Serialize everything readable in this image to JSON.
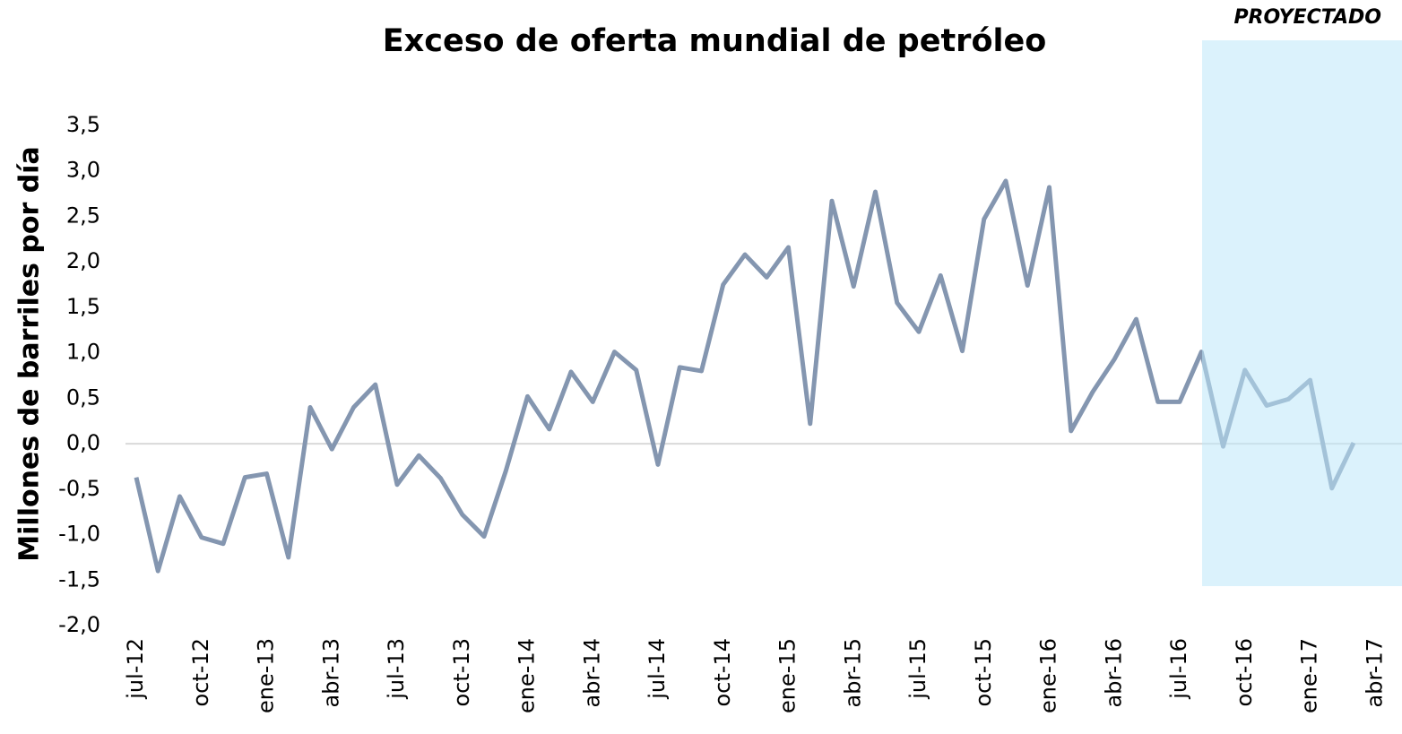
{
  "chart_data": {
    "type": "line",
    "title": "Exceso de oferta mundial de petróleo",
    "y_label": "Millones de barriles por día",
    "annotation": "PROYECTADO",
    "categories": [
      "jul-12",
      null,
      null,
      "oct-12",
      null,
      null,
      "ene-13",
      null,
      null,
      "abr-13",
      null,
      null,
      "jul-13",
      null,
      null,
      "oct-13",
      null,
      null,
      "ene-14",
      null,
      null,
      "abr-14",
      null,
      null,
      "jul-14",
      null,
      null,
      "oct-14",
      null,
      null,
      "ene-15",
      null,
      null,
      "abr-15",
      null,
      null,
      "jul-15",
      null,
      null,
      "oct-15",
      null,
      null,
      "ene-16",
      null,
      null,
      "abr-16",
      null,
      null,
      "jul-16",
      null,
      null,
      "oct-16",
      null,
      null,
      "ene-17",
      null,
      null,
      "abr-17"
    ],
    "series": [
      {
        "name": "Exceso de oferta",
        "color": "#8496b0",
        "values": [
          -0.37,
          -1.4,
          -0.58,
          -1.03,
          -1.1,
          -0.37,
          -0.33,
          -1.25,
          0.4,
          -0.06,
          0.4,
          0.65,
          -0.45,
          -0.13,
          -0.38,
          -0.78,
          -1.02,
          -0.3,
          0.52,
          0.16,
          0.79,
          0.46,
          1.01,
          0.81,
          -0.23,
          0.84,
          0.8,
          1.75,
          2.08,
          1.83,
          2.16,
          0.22,
          2.67,
          1.73,
          2.77,
          1.55,
          1.23,
          1.85,
          1.02,
          2.47,
          2.89,
          1.74,
          2.82,
          0.14,
          0.57,
          0.93,
          1.37,
          0.46,
          0.46,
          1.01,
          -0.03,
          0.81,
          0.42,
          0.49,
          0.7,
          -0.49,
          0.01,
          null
        ]
      }
    ],
    "ylim": [
      -2.0,
      3.5
    ],
    "yticks": [
      {
        "value": -2.0,
        "label": "-2,0"
      },
      {
        "value": -1.5,
        "label": "-1,5"
      },
      {
        "value": -1.0,
        "label": "-1,0"
      },
      {
        "value": -0.5,
        "label": "-0,5"
      },
      {
        "value": 0,
        "label": "0,0"
      },
      {
        "value": 0.5,
        "label": "0,5"
      },
      {
        "value": 1.0,
        "label": "1,0"
      },
      {
        "value": 1.5,
        "label": "1,5"
      },
      {
        "value": 2.0,
        "label": "2,0"
      },
      {
        "value": 2.5,
        "label": "2,5"
      },
      {
        "value": 3.0,
        "label": "3,0"
      },
      {
        "value": 3.5,
        "label": "3,5"
      }
    ],
    "zero_line": true
  }
}
